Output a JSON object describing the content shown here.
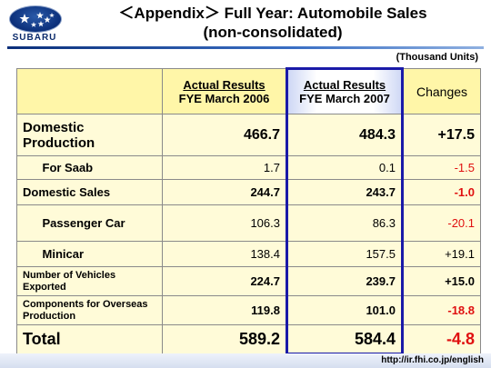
{
  "header": {
    "brand": "SUBARU",
    "title_line1": "＜Appendix＞ Full Year: Automobile Sales",
    "title_line2": "(non-consolidated)"
  },
  "unit_note": "(Thousand Units)",
  "table": {
    "headers": {
      "col1_line1": "Actual Results",
      "col1_line2": "FYE March 2006",
      "col2_line1": "Actual Results",
      "col2_line2": "FYE March 2007",
      "col3": "Changes"
    },
    "rows": [
      {
        "label": "Domestic Production",
        "v2006": "466.7",
        "v2007": "484.3",
        "change": "+17.5",
        "negative": false
      },
      {
        "label": "For Saab",
        "v2006": "1.7",
        "v2007": "0.1",
        "change": "-1.5",
        "negative": true
      },
      {
        "label": "Domestic Sales",
        "v2006": "244.7",
        "v2007": "243.7",
        "change": "-1.0",
        "negative": true
      },
      {
        "label": "Passenger Car",
        "v2006": "106.3",
        "v2007": "86.3",
        "change": "-20.1",
        "negative": true
      },
      {
        "label": "Minicar",
        "v2006": "138.4",
        "v2007": "157.5",
        "change": "+19.1",
        "negative": false
      },
      {
        "label_line1": "Number of Vehicles",
        "label_line2": "Exported",
        "v2006": "224.7",
        "v2007": "239.7",
        "change": "+15.0",
        "negative": false
      },
      {
        "label_line1": "Components for Overseas",
        "label_line2": "Production",
        "v2006": "119.8",
        "v2007": "101.0",
        "change": "-18.8",
        "negative": true
      },
      {
        "label": "Total",
        "v2006": "589.2",
        "v2007": "584.4",
        "change": "-4.8",
        "negative": true
      }
    ]
  },
  "footer": {
    "url": "http://ir.fhi.co.jp/english"
  },
  "colors": {
    "accent": "#1a1aa8",
    "negative": "#e01010",
    "cell": "#fffbd8",
    "header": "#fff6a8"
  }
}
